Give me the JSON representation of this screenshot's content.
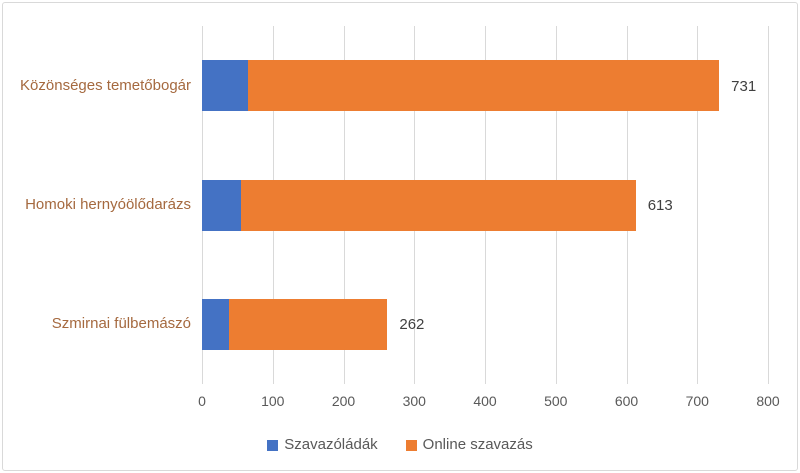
{
  "chart_data": {
    "type": "bar",
    "orientation": "horizontal",
    "stacked": true,
    "title": "",
    "categories": [
      "Közönséges temetőbogár",
      "Homoki hernyóölődarázs",
      "Szmirnai fülbemászó"
    ],
    "series": [
      {
        "name": "Szavazóládák",
        "color": "#4472C4",
        "values": [
          65,
          55,
          38
        ]
      },
      {
        "name": "Online szavazás",
        "color": "#ED7D31",
        "values": [
          666,
          558,
          224
        ]
      }
    ],
    "totals": [
      731,
      613,
      262
    ],
    "total_labels": [
      "731",
      "613",
      "262"
    ],
    "xlim": [
      0,
      800
    ],
    "xticks": [
      0,
      100,
      200,
      300,
      400,
      500,
      600,
      700,
      800
    ],
    "xtick_labels": [
      "0",
      "100",
      "200",
      "300",
      "400",
      "500",
      "600",
      "700",
      "800"
    ],
    "grid": true,
    "legend_position": "bottom"
  },
  "colors": {
    "series_blue": "#4472C4",
    "series_orange": "#ED7D31",
    "category_label": "#A5693F",
    "tick_label": "#595959",
    "value_label": "#404040",
    "legend_label": "#595959",
    "gridline": "#D9D9D9",
    "frame_border": "#D9D9D9",
    "background": "#FFFFFF"
  }
}
